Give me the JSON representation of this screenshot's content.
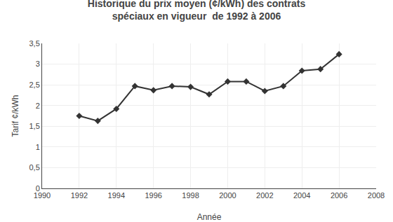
{
  "chart_data": {
    "type": "line",
    "title": "Historique du prix moyen (¢/kWh) des contrats\nspéciaux en vigueur  de 1992 à 2006",
    "xlabel": "Année",
    "ylabel": "Tarif ¢/kWh",
    "x": [
      1992,
      1993,
      1994,
      1995,
      1996,
      1997,
      1998,
      1999,
      2000,
      2001,
      2002,
      2003,
      2004,
      2005,
      2006
    ],
    "values": [
      1.75,
      1.63,
      1.92,
      2.47,
      2.37,
      2.47,
      2.45,
      2.27,
      2.58,
      2.58,
      2.35,
      2.47,
      2.84,
      2.88,
      3.24
    ],
    "color": "#333333",
    "marker": "diamond",
    "xlim": [
      1990,
      2008
    ],
    "xticks": [
      1990,
      1992,
      1994,
      1996,
      1998,
      2000,
      2002,
      2004,
      2006,
      2008
    ],
    "ylim": [
      0,
      3.5
    ],
    "yticks": [
      0,
      {
        "value": 0.5,
        "label": "0,5"
      },
      1,
      {
        "value": 1.5,
        "label": "1,5"
      },
      2,
      {
        "value": 2.5,
        "label": "2,5"
      },
      3,
      {
        "value": 3.5,
        "label": "3,5"
      }
    ],
    "grid": true
  }
}
